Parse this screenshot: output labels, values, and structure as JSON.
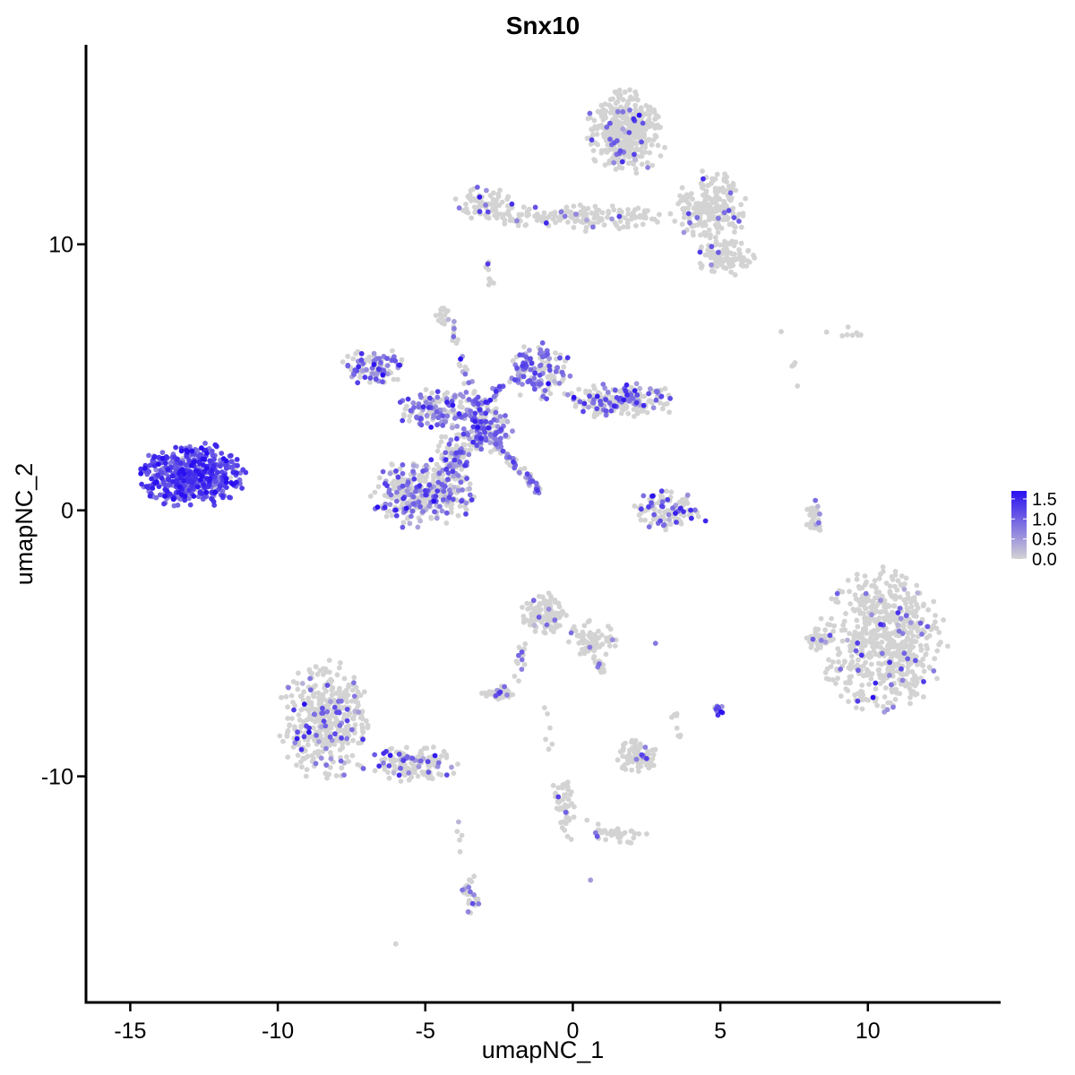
{
  "chart_data": {
    "type": "scatter",
    "title": "Snx10",
    "xlabel": "umapNC_1",
    "ylabel": "umapNC_2",
    "xlim": [
      -16.5,
      14.5
    ],
    "ylim": [
      -18.5,
      17.5
    ],
    "x_ticks": [
      -15,
      -10,
      -5,
      0,
      5,
      10
    ],
    "x_tick_labels": [
      "-15",
      "-10",
      "-5",
      "0",
      "5",
      "10"
    ],
    "y_ticks": [
      -10,
      0,
      10
    ],
    "y_tick_labels": [
      "-10",
      "0",
      "10"
    ],
    "grid": false,
    "legend": {
      "placement": "right",
      "color_low": "#d3d3d3",
      "color_high": "#2a10f0",
      "range": [
        0.0,
        1.7
      ],
      "ticks": [
        0.0,
        0.5,
        1.0,
        1.5
      ],
      "tick_labels": [
        "0.0",
        "0.5",
        "1.0",
        "1.5"
      ]
    },
    "clusters": [
      {
        "cx": -12.9,
        "cy": 1.3,
        "rx": 1.6,
        "ry": 1.1,
        "n": 520,
        "expr_mean": 1.15,
        "expr_frac": 0.95
      },
      {
        "cx": 1.8,
        "cy": 14.2,
        "rx": 1.2,
        "ry": 1.4,
        "n": 420,
        "expr_mean": 0.9,
        "expr_frac": 0.05
      },
      {
        "cx": 4.7,
        "cy": 11.4,
        "rx": 1.1,
        "ry": 1.2,
        "n": 220,
        "expr_mean": 0.9,
        "expr_frac": 0.06
      },
      {
        "cx": 0.5,
        "cy": 11.0,
        "rx": 3.0,
        "ry": 0.45,
        "n": 130,
        "expr_mean": 0.9,
        "expr_frac": 0.06
      },
      {
        "cx": -3.0,
        "cy": 11.5,
        "rx": 0.9,
        "ry": 0.6,
        "n": 70,
        "expr_mean": 0.9,
        "expr_frac": 0.1
      },
      {
        "cx": 5.2,
        "cy": 9.5,
        "rx": 0.9,
        "ry": 0.6,
        "n": 110,
        "expr_mean": 0.9,
        "expr_frac": 0.04
      },
      {
        "cx": -6.7,
        "cy": 5.4,
        "rx": 1.0,
        "ry": 0.6,
        "n": 100,
        "expr_mean": 0.9,
        "expr_frac": 0.55
      },
      {
        "cx": -4.6,
        "cy": 3.8,
        "rx": 1.4,
        "ry": 0.7,
        "n": 150,
        "expr_mean": 0.85,
        "expr_frac": 0.5
      },
      {
        "cx": -1.1,
        "cy": 5.2,
        "rx": 0.9,
        "ry": 1.0,
        "n": 120,
        "expr_mean": 0.9,
        "expr_frac": 0.6
      },
      {
        "cx": 1.6,
        "cy": 4.1,
        "rx": 1.8,
        "ry": 0.6,
        "n": 200,
        "expr_mean": 0.9,
        "expr_frac": 0.35
      },
      {
        "cx": -2.9,
        "cy": 3.0,
        "rx": 0.9,
        "ry": 0.8,
        "n": 120,
        "expr_mean": 0.9,
        "expr_frac": 0.6
      },
      {
        "cx": -5.6,
        "cy": 0.6,
        "rx": 1.1,
        "ry": 1.1,
        "n": 200,
        "expr_mean": 0.85,
        "expr_frac": 0.4
      },
      {
        "cx": -4.3,
        "cy": 0.8,
        "rx": 0.9,
        "ry": 1.1,
        "n": 150,
        "expr_mean": 0.85,
        "expr_frac": 0.4
      },
      {
        "cx": -4.0,
        "cy": 2.0,
        "rx": 0.6,
        "ry": 1.0,
        "n": 80,
        "expr_mean": 0.85,
        "expr_frac": 0.5
      },
      {
        "cx": 3.2,
        "cy": 0.0,
        "rx": 1.0,
        "ry": 0.65,
        "n": 110,
        "expr_mean": 1.1,
        "expr_frac": 0.3
      },
      {
        "cx": 10.5,
        "cy": -4.9,
        "rx": 1.9,
        "ry": 2.4,
        "n": 650,
        "expr_mean": 0.9,
        "expr_frac": 0.05
      },
      {
        "cx": 8.3,
        "cy": -4.8,
        "rx": 0.4,
        "ry": 0.5,
        "n": 30,
        "expr_mean": 0.9,
        "expr_frac": 0.05
      },
      {
        "cx": 8.2,
        "cy": -0.3,
        "rx": 0.25,
        "ry": 0.6,
        "n": 30,
        "expr_mean": 0.9,
        "expr_frac": 0.05
      },
      {
        "cx": -8.4,
        "cy": -7.9,
        "rx": 1.4,
        "ry": 2.0,
        "n": 400,
        "expr_mean": 0.9,
        "expr_frac": 0.15
      },
      {
        "cx": -5.5,
        "cy": -9.5,
        "rx": 1.5,
        "ry": 0.6,
        "n": 140,
        "expr_mean": 0.9,
        "expr_frac": 0.18
      },
      {
        "cx": -1.0,
        "cy": -3.9,
        "rx": 0.7,
        "ry": 0.7,
        "n": 110,
        "expr_mean": 0.9,
        "expr_frac": 0.06
      },
      {
        "cx": 0.7,
        "cy": -4.8,
        "rx": 0.8,
        "ry": 0.6,
        "n": 70,
        "expr_mean": 0.9,
        "expr_frac": 0.05
      },
      {
        "cx": -2.5,
        "cy": -6.9,
        "rx": 0.5,
        "ry": 0.25,
        "n": 45,
        "expr_mean": 0.9,
        "expr_frac": 0.05
      },
      {
        "cx": 2.2,
        "cy": -9.3,
        "rx": 0.6,
        "ry": 0.6,
        "n": 80,
        "expr_mean": 0.9,
        "expr_frac": 0.05
      },
      {
        "cx": 5.0,
        "cy": -7.5,
        "rx": 0.2,
        "ry": 0.2,
        "n": 12,
        "expr_mean": 1.1,
        "expr_frac": 0.7
      },
      {
        "cx": -3.5,
        "cy": -14.5,
        "rx": 0.3,
        "ry": 0.8,
        "n": 30,
        "expr_mean": 0.9,
        "expr_frac": 0.3
      },
      {
        "cx": -0.3,
        "cy": -11.2,
        "rx": 0.3,
        "ry": 1.1,
        "n": 30,
        "expr_mean": 0.9,
        "expr_frac": 0.08
      },
      {
        "cx": 1.6,
        "cy": -12.2,
        "rx": 0.9,
        "ry": 0.3,
        "n": 30,
        "expr_mean": 0.9,
        "expr_frac": 0.08
      },
      {
        "cx": -4.4,
        "cy": 7.3,
        "rx": 0.25,
        "ry": 0.3,
        "n": 18,
        "expr_mean": 0.9,
        "expr_frac": 0.05
      },
      {
        "cx": -2.8,
        "cy": 8.9,
        "rx": 0.2,
        "ry": 0.5,
        "n": 10,
        "expr_mean": 0.9,
        "expr_frac": 0.05
      },
      {
        "cx": 9.5,
        "cy": 6.7,
        "rx": 0.4,
        "ry": 0.2,
        "n": 6,
        "expr_mean": 0.9,
        "expr_frac": 0.05
      }
    ],
    "streaks": [
      {
        "x0": -2.6,
        "y0": 2.5,
        "x1": -1.1,
        "y1": 0.7,
        "n": 60,
        "expr_mean": 0.9,
        "expr_frac": 0.7
      },
      {
        "x0": -3.0,
        "y0": 3.3,
        "x1": -4.2,
        "y1": 7.0,
        "n": 40,
        "expr_mean": 0.9,
        "expr_frac": 0.5
      },
      {
        "x0": -3.3,
        "y0": 3.8,
        "x1": -1.3,
        "y1": 5.6,
        "n": 40,
        "expr_mean": 0.9,
        "expr_frac": 0.6
      },
      {
        "x0": -2.6,
        "y0": 11.0,
        "x1": 0.7,
        "y1": 11.1,
        "n": 40,
        "expr_mean": 0.9,
        "expr_frac": 0.08
      },
      {
        "x0": -1.7,
        "y0": -5.0,
        "x1": -1.9,
        "y1": -6.4,
        "n": 14,
        "expr_mean": 0.9,
        "expr_frac": 0.3
      },
      {
        "x0": 0.4,
        "y0": -5.2,
        "x1": 1.2,
        "y1": -6.2,
        "n": 20,
        "expr_mean": 0.9,
        "expr_frac": 0.1
      },
      {
        "x0": -0.6,
        "y0": -10.3,
        "x1": -0.1,
        "y1": -12.4,
        "n": 20,
        "expr_mean": 0.9,
        "expr_frac": 0.1
      },
      {
        "x0": -0.8,
        "y0": -9.0,
        "x1": -0.8,
        "y1": -7.3,
        "n": 6,
        "expr_mean": 0.9,
        "expr_frac": 0.1
      },
      {
        "x0": 0.5,
        "y0": -11.7,
        "x1": 1.5,
        "y1": -12.2,
        "n": 10,
        "expr_mean": 0.9,
        "expr_frac": 0.05
      },
      {
        "x0": -3.8,
        "y0": -11.6,
        "x1": -3.8,
        "y1": -13.0,
        "n": 5,
        "expr_mean": 0.9,
        "expr_frac": 0.3
      },
      {
        "x0": 6.9,
        "y0": 6.9,
        "x1": 7.8,
        "y1": 4.6,
        "n": 5,
        "expr_mean": 0.9,
        "expr_frac": 0.05
      },
      {
        "x0": 3.3,
        "y0": -7.0,
        "x1": 3.6,
        "y1": -8.6,
        "n": 8,
        "expr_mean": 0.9,
        "expr_frac": 0.05
      }
    ],
    "singles": [
      {
        "x": -6.0,
        "y": -16.3,
        "v": 0.0
      },
      {
        "x": 0.6,
        "y": -13.9,
        "v": 0.5
      },
      {
        "x": 2.8,
        "y": -5.0,
        "v": 0.8
      },
      {
        "x": 8.6,
        "y": 6.7,
        "v": 0.0
      },
      {
        "x": 9.3,
        "y": 6.6,
        "v": 0.0
      },
      {
        "x": 4.5,
        "y": -0.4,
        "v": 1.5
      }
    ]
  }
}
